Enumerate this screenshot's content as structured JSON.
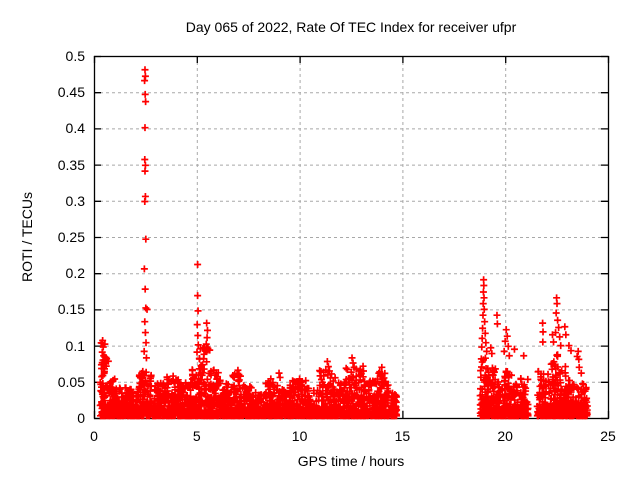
{
  "window": {
    "background": "#ffffff"
  },
  "chart": {
    "title": "Day 065 of 2022, Rate Of TEC Index for receiver ufpr",
    "xlabel": "GPS time / hours",
    "ylabel": "ROTI / TECUs"
  },
  "chart_data": {
    "type": "scatter",
    "title": "Day 065 of 2022, Rate Of TEC Index for receiver ufpr",
    "xlabel": "GPS time / hours",
    "ylabel": "ROTI / TECUs",
    "xlim": [
      0,
      25
    ],
    "ylim": [
      0,
      0.5
    ],
    "grid": true,
    "legend": "none",
    "axis_color": "#000000",
    "grid_color": "#a8a8a8",
    "grid_dash": [
      3,
      3
    ],
    "marker": {
      "shape": "plus",
      "color": "#ff0000",
      "size": 7,
      "stroke": 1.7
    },
    "x_ticks": [
      {
        "v": 0,
        "label": "0"
      },
      {
        "v": 5,
        "label": "5"
      },
      {
        "v": 10,
        "label": "10"
      },
      {
        "v": 15,
        "label": "15"
      },
      {
        "v": 20,
        "label": "20"
      },
      {
        "v": 25,
        "label": "25"
      }
    ],
    "y_ticks": [
      {
        "v": 0,
        "label": "0"
      },
      {
        "v": 0.05,
        "label": "0.05"
      },
      {
        "v": 0.1,
        "label": "0.1"
      },
      {
        "v": 0.15,
        "label": "0.15"
      },
      {
        "v": 0.2,
        "label": "0.2"
      },
      {
        "v": 0.25,
        "label": "0.25"
      },
      {
        "v": 0.3,
        "label": "0.3"
      },
      {
        "v": 0.35,
        "label": "0.35"
      },
      {
        "v": 0.4,
        "label": "0.4"
      },
      {
        "v": 0.45,
        "label": "0.45"
      },
      {
        "v": 0.5,
        "label": "0.5"
      }
    ],
    "seed": 42,
    "band_ymin": 0.003,
    "band_skew": 2.6,
    "dense_bands": [
      [
        0.3,
        0.7,
        0.105,
        90
      ],
      [
        0.7,
        1.1,
        0.055,
        80
      ],
      [
        1.1,
        2.2,
        0.042,
        210
      ],
      [
        2.2,
        2.8,
        0.065,
        120
      ],
      [
        2.8,
        3.5,
        0.048,
        130
      ],
      [
        3.5,
        4.1,
        0.058,
        115
      ],
      [
        4.1,
        4.75,
        0.05,
        120
      ],
      [
        4.75,
        5.1,
        0.07,
        70
      ],
      [
        5.1,
        5.65,
        0.1,
        110
      ],
      [
        5.65,
        6.15,
        0.068,
        95
      ],
      [
        6.15,
        6.65,
        0.048,
        90
      ],
      [
        6.65,
        7.15,
        0.062,
        95
      ],
      [
        7.15,
        7.7,
        0.047,
        95
      ],
      [
        7.7,
        8.35,
        0.038,
        110
      ],
      [
        8.35,
        8.95,
        0.052,
        100
      ],
      [
        8.95,
        9.6,
        0.046,
        110
      ],
      [
        9.6,
        10.3,
        0.052,
        115
      ],
      [
        10.3,
        10.95,
        0.042,
        105
      ],
      [
        10.95,
        11.75,
        0.068,
        135
      ],
      [
        11.75,
        12.25,
        0.052,
        85
      ],
      [
        12.25,
        13.15,
        0.072,
        150
      ],
      [
        13.15,
        13.75,
        0.052,
        100
      ],
      [
        13.75,
        14.35,
        0.065,
        100
      ],
      [
        14.35,
        14.72,
        0.038,
        55
      ],
      [
        18.78,
        19.15,
        0.085,
        75
      ],
      [
        19.15,
        19.55,
        0.072,
        75
      ],
      [
        19.55,
        19.95,
        0.052,
        75
      ],
      [
        19.95,
        20.35,
        0.065,
        75
      ],
      [
        20.35,
        20.75,
        0.048,
        70
      ],
      [
        20.75,
        21.12,
        0.055,
        65
      ],
      [
        21.55,
        22.15,
        0.065,
        95
      ],
      [
        22.15,
        22.55,
        0.088,
        85
      ],
      [
        22.55,
        22.95,
        0.072,
        80
      ],
      [
        22.95,
        23.35,
        0.052,
        75
      ],
      [
        23.35,
        23.68,
        0.045,
        60
      ],
      [
        23.68,
        24.0,
        0.058,
        65
      ]
    ],
    "spike_points": [
      [
        0.42,
        0.107
      ],
      [
        0.45,
        0.098
      ],
      [
        0.4,
        0.091
      ],
      [
        0.47,
        0.086
      ],
      [
        0.44,
        0.08
      ],
      [
        0.41,
        0.074
      ],
      [
        0.46,
        0.068
      ],
      [
        2.48,
        0.481
      ],
      [
        2.5,
        0.472
      ],
      [
        2.46,
        0.466
      ],
      [
        2.49,
        0.447
      ],
      [
        2.51,
        0.437
      ],
      [
        2.48,
        0.401
      ],
      [
        2.47,
        0.357
      ],
      [
        2.5,
        0.349
      ],
      [
        2.48,
        0.341
      ],
      [
        2.5,
        0.306
      ],
      [
        2.47,
        0.299
      ],
      [
        2.52,
        0.247
      ],
      [
        2.45,
        0.206
      ],
      [
        2.49,
        0.178
      ],
      [
        2.52,
        0.152
      ],
      [
        2.58,
        0.15
      ],
      [
        2.47,
        0.133
      ],
      [
        2.5,
        0.118
      ],
      [
        2.53,
        0.104
      ],
      [
        2.44,
        0.092
      ],
      [
        2.55,
        0.083
      ],
      [
        5.04,
        0.212
      ],
      [
        5.04,
        0.169
      ],
      [
        5.06,
        0.148
      ],
      [
        5.02,
        0.129
      ],
      [
        5.05,
        0.114
      ],
      [
        5.07,
        0.101
      ],
      [
        5.01,
        0.091
      ],
      [
        5.48,
        0.131
      ],
      [
        5.52,
        0.121
      ],
      [
        5.5,
        0.111
      ],
      [
        5.46,
        0.102
      ],
      [
        5.54,
        0.094
      ],
      [
        5.3,
        0.096
      ],
      [
        5.35,
        0.088
      ],
      [
        7.0,
        0.066
      ],
      [
        7.05,
        0.06
      ],
      [
        8.6,
        0.054
      ],
      [
        9.0,
        0.062
      ],
      [
        9.05,
        0.056
      ],
      [
        10.0,
        0.054
      ],
      [
        11.35,
        0.078
      ],
      [
        11.4,
        0.071
      ],
      [
        11.45,
        0.065
      ],
      [
        12.55,
        0.083
      ],
      [
        12.6,
        0.076
      ],
      [
        12.65,
        0.07
      ],
      [
        12.9,
        0.065
      ],
      [
        13.9,
        0.064
      ],
      [
        14.0,
        0.07
      ],
      [
        13.95,
        0.058
      ],
      [
        18.95,
        0.191
      ],
      [
        18.96,
        0.183
      ],
      [
        18.94,
        0.174
      ],
      [
        18.97,
        0.166
      ],
      [
        18.93,
        0.158
      ],
      [
        18.98,
        0.15
      ],
      [
        18.92,
        0.142
      ],
      [
        19.0,
        0.133
      ],
      [
        18.9,
        0.124
      ],
      [
        19.03,
        0.117
      ],
      [
        18.88,
        0.11
      ],
      [
        19.06,
        0.104
      ],
      [
        18.86,
        0.098
      ],
      [
        19.1,
        0.092
      ],
      [
        19.3,
        0.097
      ],
      [
        19.35,
        0.089
      ],
      [
        19.6,
        0.142
      ],
      [
        19.62,
        0.13
      ],
      [
        20.05,
        0.122
      ],
      [
        20.1,
        0.113
      ],
      [
        20.0,
        0.106
      ],
      [
        20.15,
        0.099
      ],
      [
        19.95,
        0.092
      ],
      [
        20.2,
        0.086
      ],
      [
        20.45,
        0.095
      ],
      [
        20.9,
        0.086
      ],
      [
        21.82,
        0.131
      ],
      [
        21.84,
        0.119
      ],
      [
        21.83,
        0.105
      ],
      [
        22.3,
        0.115
      ],
      [
        22.35,
        0.105
      ],
      [
        22.5,
        0.166
      ],
      [
        22.52,
        0.158
      ],
      [
        22.48,
        0.145
      ],
      [
        22.55,
        0.135
      ],
      [
        22.6,
        0.125
      ],
      [
        22.45,
        0.118
      ],
      [
        22.65,
        0.112
      ],
      [
        22.7,
        0.1
      ],
      [
        22.9,
        0.126
      ],
      [
        22.95,
        0.115
      ],
      [
        23.1,
        0.1
      ],
      [
        23.2,
        0.093
      ],
      [
        23.5,
        0.085
      ],
      [
        23.55,
        0.092
      ],
      [
        23.58,
        0.081
      ],
      [
        23.6,
        0.07
      ],
      [
        23.7,
        0.062
      ]
    ]
  }
}
